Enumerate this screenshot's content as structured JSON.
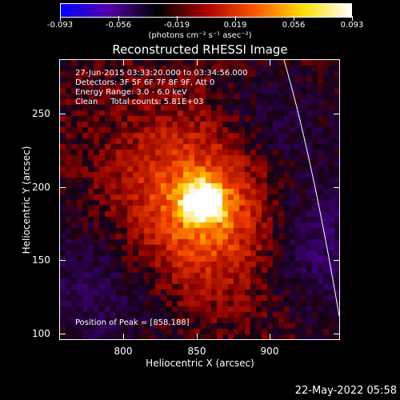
{
  "colorbar": {
    "tick_labels": [
      "-0.093",
      "-0.056",
      "-0.019",
      "0.019",
      "0.056",
      "0.093"
    ],
    "units": "(photons cm⁻² s⁻¹ asec⁻²)"
  },
  "title": "Reconstructed RHESSI Image",
  "info": {
    "line1": "27-Jun-2015 03:33:20.000 to 03:34:56.000",
    "line2": "Detectors: 3F 5F 6F 7F 8F 9F, Att 0",
    "line3": "Energy Range: 3.0 - 6.0 keV",
    "line4": "Clean     Total counts: 5.81E+03"
  },
  "peak_text": "Position of Peak = [858,188]",
  "x_axis": {
    "title": "Heliocentric X (arcsec)",
    "ticks": [
      "800",
      "850",
      "900"
    ]
  },
  "y_axis": {
    "title": "Heliocentric Y (arcsec)",
    "ticks": [
      "250",
      "200",
      "150",
      "100"
    ]
  },
  "timestamp": "22-May-2022 05:58",
  "chart_data": {
    "type": "heatmap",
    "title": "Reconstructed RHESSI Image",
    "xlabel": "Heliocentric X (arcsec)",
    "ylabel": "Heliocentric Y (arcsec)",
    "xlim": [
      760,
      950
    ],
    "ylim": [
      95,
      285
    ],
    "colorbar_range": [
      -0.093,
      0.093
    ],
    "peak": [
      858,
      188
    ],
    "colormap": [
      "#0000ff",
      "#5500aa",
      "#000000",
      "#aa0000",
      "#ff5500",
      "#ffdd00",
      "#ffffff"
    ]
  }
}
